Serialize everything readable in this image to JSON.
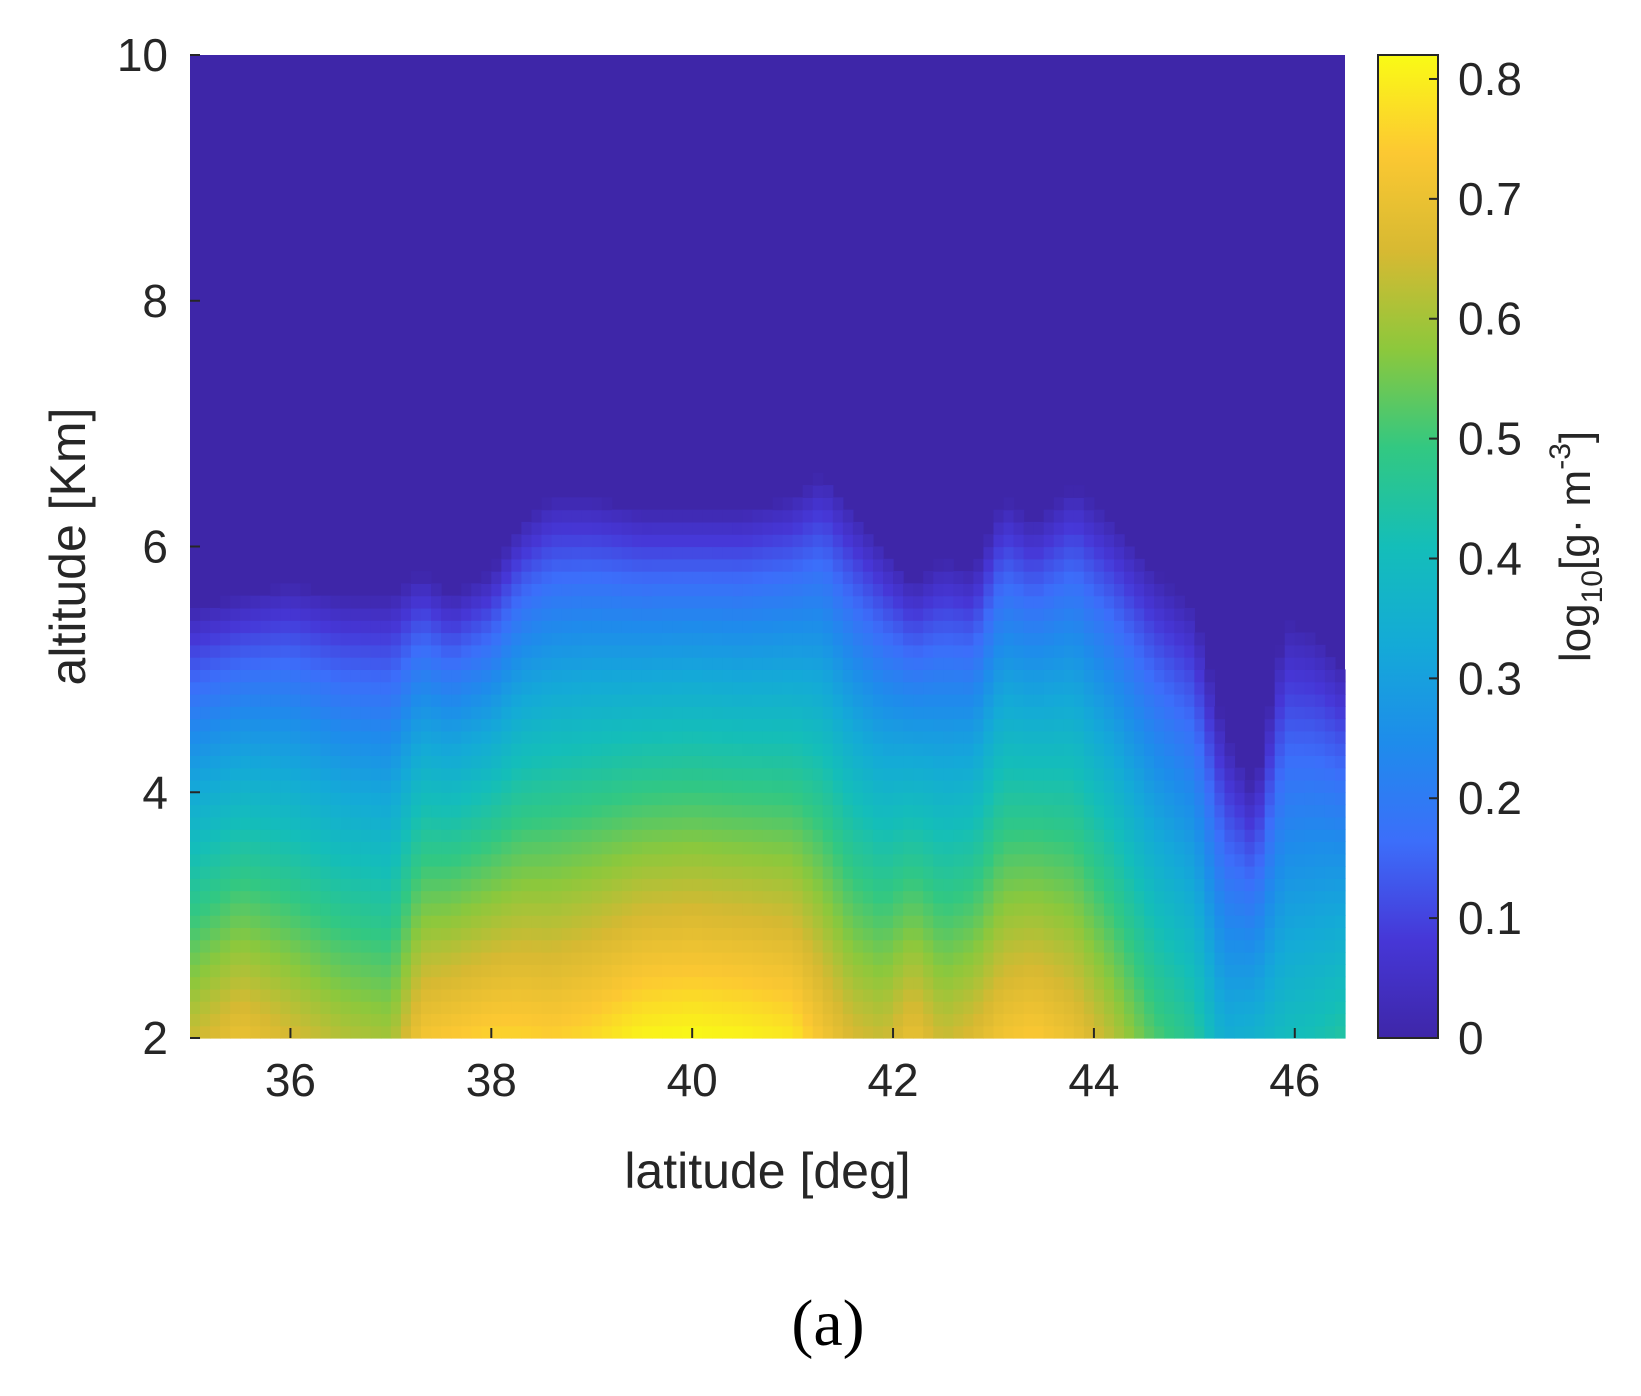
{
  "chart_data": {
    "type": "heatmap",
    "xlabel": "latitude [deg]",
    "ylabel": "altitude [Km]",
    "xlim": [
      35,
      46.5
    ],
    "ylim": [
      2,
      10
    ],
    "x_ticks": [
      36,
      38,
      40,
      42,
      44,
      46
    ],
    "y_ticks": [
      2,
      4,
      6,
      8,
      10
    ],
    "colorbar": {
      "label_parts": [
        "log",
        "10",
        "[g· m",
        "-3",
        "]"
      ],
      "range": [
        0,
        0.82
      ],
      "ticks": [
        0,
        0.1,
        0.2,
        0.3,
        0.4,
        0.5,
        0.6,
        0.7,
        0.8
      ],
      "colormap": "parula"
    },
    "columns_note_free": true,
    "latitude": [
      35.0,
      35.5,
      36.0,
      36.5,
      37.0,
      37.3,
      37.6,
      38.0,
      38.3,
      38.6,
      39.0,
      39.5,
      40.0,
      40.5,
      41.0,
      41.3,
      41.6,
      41.9,
      42.2,
      42.5,
      42.8,
      43.1,
      43.4,
      43.8,
      44.2,
      44.6,
      45.0,
      45.3,
      45.6,
      45.9,
      46.2,
      46.5
    ],
    "cloud_top_km": [
      5.5,
      5.6,
      5.7,
      5.6,
      5.6,
      5.8,
      5.6,
      5.8,
      6.2,
      6.4,
      6.4,
      6.3,
      6.3,
      6.3,
      6.4,
      6.6,
      6.3,
      6.0,
      5.7,
      5.9,
      5.8,
      6.4,
      6.2,
      6.5,
      6.2,
      5.8,
      5.5,
      4.5,
      4.0,
      5.4,
      5.3,
      5.0
    ],
    "max_value": [
      0.64,
      0.7,
      0.66,
      0.62,
      0.6,
      0.72,
      0.74,
      0.76,
      0.76,
      0.75,
      0.77,
      0.81,
      0.82,
      0.81,
      0.79,
      0.72,
      0.66,
      0.64,
      0.7,
      0.64,
      0.67,
      0.72,
      0.74,
      0.7,
      0.62,
      0.52,
      0.46,
      0.34,
      0.36,
      0.4,
      0.42,
      0.45
    ],
    "panel_label": "(a)"
  }
}
